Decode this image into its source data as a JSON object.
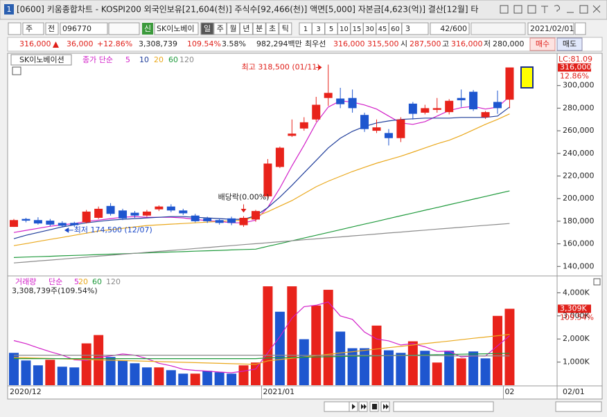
{
  "window": {
    "number": "1",
    "title": "[0600] 키움종합차트 - KOSPI200 외국인보유[21,604(천)] 주식수[92,466(천)] 액면[5,000] 자본금[4,623(억)] 결산[12월] 타"
  },
  "toolbar": {
    "period_type": "주",
    "all": "전",
    "code": "096770",
    "new": "신",
    "name": "SK이노베이",
    "periods": [
      "일",
      "주",
      "월",
      "년",
      "분",
      "초",
      "틱"
    ],
    "intervals": [
      "1",
      "3",
      "5",
      "10",
      "15",
      "30",
      "45",
      "60"
    ],
    "custom": "3",
    "count": "42/600",
    "date": "2021/02/01"
  },
  "quote": {
    "price": "316,000",
    "change": "36,000",
    "rate": "+12.86%",
    "volume": "3,308,739",
    "volume_ratio": "109.54%",
    "turnover": "3.58%",
    "amount": "982,294백만",
    "best_label": "최우선",
    "ask": "316,000",
    "bid": "315,500",
    "open_label": "시",
    "open": "287,500",
    "high_label": "고",
    "high": "316,000",
    "low_label": "저",
    "low": "280,000",
    "buy": "매수",
    "sell": "매도"
  },
  "chart_data": [
    {
      "type": "candlestick",
      "name": "SK이노베이션",
      "ma_label": "종가 단순",
      "categories": [
        "2020/12",
        null,
        null,
        null,
        null,
        null,
        null,
        null,
        null,
        null,
        null,
        null,
        null,
        null,
        null,
        null,
        null,
        null,
        null,
        null,
        null,
        "2021/01",
        null,
        null,
        null,
        null,
        null,
        null,
        null,
        null,
        null,
        null,
        null,
        null,
        null,
        null,
        null,
        null,
        null,
        null,
        null,
        "02"
      ],
      "x_end_label": "02/01",
      "open": [
        175000,
        182000,
        181000,
        180500,
        178500,
        178500,
        179000,
        183000,
        193500,
        189500,
        187500,
        185000,
        190500,
        193000,
        189500,
        185000,
        182500,
        181000,
        182500,
        176500,
        181500,
        202000,
        228000,
        255500,
        262000,
        270000,
        289000,
        288500,
        289000,
        274000,
        260000,
        258000,
        253500,
        284000,
        276000,
        278500,
        276500,
        289000,
        294500,
        272000,
        285500,
        287500
      ],
      "high": [
        182000,
        183000,
        183500,
        182000,
        180000,
        179500,
        190000,
        193000,
        196000,
        191000,
        189000,
        190000,
        194000,
        195000,
        191000,
        186500,
        184000,
        182500,
        184000,
        184500,
        190000,
        235000,
        246000,
        270000,
        272000,
        290000,
        318500,
        298000,
        296500,
        276000,
        270000,
        261500,
        272000,
        285500,
        283000,
        289000,
        288000,
        296500,
        296000,
        277500,
        295500,
        316000
      ],
      "low": [
        175000,
        179000,
        177000,
        175500,
        174500,
        175000,
        178000,
        182000,
        185000,
        181000,
        183000,
        184000,
        189000,
        188000,
        185500,
        179000,
        178500,
        177000,
        176500,
        175000,
        179500,
        200000,
        227000,
        254500,
        260000,
        268000,
        282000,
        280000,
        276000,
        259000,
        258000,
        247000,
        250000,
        270000,
        274500,
        276000,
        274500,
        281000,
        277500,
        270500,
        275000,
        280000
      ],
      "close": [
        181000,
        180500,
        178000,
        177000,
        176000,
        176500,
        188500,
        191000,
        186500,
        182500,
        185000,
        188500,
        193000,
        189500,
        187000,
        180000,
        180000,
        178500,
        178500,
        183000,
        189000,
        231000,
        245000,
        257500,
        267500,
        283000,
        293500,
        283500,
        280000,
        261500,
        263000,
        253500,
        270000,
        275000,
        280000,
        280000,
        286500,
        287000,
        279000,
        276500,
        280000,
        316000
      ],
      "up_color": "#e8231b",
      "down_color": "#1e56cf",
      "series": [
        {
          "name": "5",
          "color": "#d21fc8",
          "values": [
            170000,
            171900,
            173700,
            175500,
            176800,
            178000,
            179800,
            181000,
            182300,
            183500,
            184100,
            183500,
            183500,
            183500,
            182900,
            181700,
            180400,
            179800,
            178600,
            178600,
            181000,
            192100,
            209300,
            228900,
            247300,
            266900,
            281000,
            286500,
            285300,
            282800,
            279200,
            273000,
            266900,
            265700,
            268100,
            273000,
            277900,
            280400,
            281600,
            279200,
            281000,
            290200
          ]
        },
        {
          "name": "10",
          "color": "#1e3c9a",
          "values": [
            164500,
            167600,
            170000,
            172500,
            175000,
            176800,
            178600,
            179800,
            181000,
            181700,
            182300,
            182900,
            183500,
            184100,
            184100,
            183500,
            182900,
            182300,
            181700,
            181700,
            184800,
            192100,
            201300,
            211700,
            222800,
            233800,
            244800,
            253400,
            259500,
            263800,
            266900,
            268700,
            270000,
            270600,
            271200,
            271200,
            271200,
            271800,
            271800,
            271800,
            273000,
            281000
          ]
        },
        {
          "name": "20",
          "color": "#eaa81c",
          "values": [
            158400,
            160200,
            162100,
            163900,
            165700,
            167600,
            169400,
            171300,
            172500,
            173700,
            175000,
            176200,
            176800,
            177400,
            178000,
            178600,
            179200,
            179800,
            180400,
            181000,
            184100,
            188400,
            193300,
            198200,
            204400,
            210500,
            215400,
            219700,
            224000,
            227700,
            231300,
            234400,
            237500,
            241100,
            244800,
            248500,
            251600,
            255900,
            260800,
            265700,
            270000,
            274900
          ]
        },
        {
          "name": "60",
          "color": "#1f9a3c",
          "values": [
            147900,
            148300,
            148600,
            149000,
            149400,
            149800,
            150100,
            150500,
            150900,
            151200,
            151600,
            152000,
            152400,
            152800,
            153100,
            153500,
            153900,
            154200,
            154600,
            155000,
            155300,
            157800,
            160200,
            162700,
            165100,
            167600,
            170000,
            172500,
            175000,
            177400,
            179800,
            182300,
            184800,
            187200,
            189700,
            192100,
            194600,
            197000,
            199500,
            201900,
            204400,
            206800
          ]
        },
        {
          "name": "120",
          "color": "#8a8a8a",
          "values": [
            143100,
            143900,
            144800,
            145600,
            146500,
            147400,
            148200,
            149100,
            149900,
            150800,
            151600,
            152500,
            153300,
            154200,
            155000,
            155900,
            156700,
            157600,
            158400,
            159300,
            160100,
            161000,
            161900,
            162700,
            163600,
            164400,
            165300,
            166100,
            167000,
            167800,
            168700,
            169600,
            170400,
            171300,
            172100,
            173000,
            173800,
            174700,
            175500,
            176400,
            177200,
            178000
          ]
        }
      ],
      "ylim": [
        131000,
        320000
      ],
      "yticks": [
        {
          "value": 140000,
          "label": "140,000"
        },
        {
          "value": 160000,
          "label": "160,000"
        },
        {
          "value": 180000,
          "label": "180,000"
        },
        {
          "value": 200000,
          "label": "200,000"
        },
        {
          "value": 220000,
          "label": "220,000"
        },
        {
          "value": 240000,
          "label": "240,000"
        },
        {
          "value": 260000,
          "label": "260,000"
        },
        {
          "value": 280000,
          "label": "280,000"
        },
        {
          "value": 300000,
          "label": "300,000"
        }
      ],
      "annotations": {
        "high": "최고 318,500 (01/11)",
        "low": "최저 174,500 (12/07)",
        "ex_dividend": "배당락(0.00%)"
      },
      "lc_label": "LC:81.09",
      "price_label": "316,000",
      "rate_label": "12.86%"
    },
    {
      "type": "volume",
      "name": "거래량",
      "ma_label": "단순",
      "summary": "3,308,739주(109.54%)",
      "values": [
        1400000,
        1070000,
        860000,
        1100000,
        800000,
        770000,
        1810000,
        2170000,
        1220000,
        1070000,
        950000,
        770000,
        770000,
        650000,
        500000,
        500000,
        620000,
        560000,
        500000,
        860000,
        980000,
        4280000,
        3180000,
        4280000,
        1990000,
        3450000,
        4130000,
        2320000,
        1600000,
        1600000,
        2580000,
        1510000,
        1400000,
        1900000,
        1490000,
        980000,
        1490000,
        1160000,
        1460000,
        1160000,
        3000000,
        3308739
      ],
      "colors": [
        "#1e56cf",
        "#1e56cf",
        "#1e56cf",
        "#e8231b",
        "#1e56cf",
        "#1e56cf",
        "#e8231b",
        "#e8231b",
        "#1e56cf",
        "#1e56cf",
        "#1e56cf",
        "#1e56cf",
        "#e8231b",
        "#1e56cf",
        "#1e56cf",
        "#e8231b",
        "#1e56cf",
        "#1e56cf",
        "#1e56cf",
        "#e8231b",
        "#e8231b",
        "#e8231b",
        "#1e56cf",
        "#e8231b",
        "#1e56cf",
        "#e8231b",
        "#e8231b",
        "#1e56cf",
        "#1e56cf",
        "#1e56cf",
        "#e8231b",
        "#1e56cf",
        "#1e56cf",
        "#e8231b",
        "#1e56cf",
        "#e8231b",
        "#1e56cf",
        "#e8231b",
        "#1e56cf",
        "#1e56cf",
        "#e8231b",
        "#e8231b"
      ],
      "series": [
        {
          "name": "5",
          "color": "#d21fc8",
          "values": [
            1930000,
            1800000,
            1620000,
            1450000,
            1300000,
            1100000,
            1070000,
            1200000,
            1270000,
            1350000,
            1300000,
            1150000,
            950000,
            840000,
            690000,
            640000,
            610000,
            570000,
            540000,
            610000,
            700000,
            1400000,
            2100000,
            2900000,
            3400000,
            3460000,
            3600000,
            3000000,
            2850000,
            2300000,
            2000000,
            1920000,
            1740000,
            1800000,
            1660000,
            1460000,
            1470000,
            1220000,
            1270000,
            1260000,
            1700000,
            2140000
          ]
        },
        {
          "name": "20",
          "color": "#eaa81c",
          "values": [
            1200000,
            1185000,
            1170000,
            1155000,
            1140000,
            1125000,
            1110000,
            1095000,
            1080000,
            1065000,
            1050000,
            1035000,
            1020000,
            1005000,
            990000,
            975000,
            960000,
            945000,
            930000,
            915000,
            900000,
            1050000,
            1110000,
            1165000,
            1220000,
            1280000,
            1335000,
            1395000,
            1450000,
            1510000,
            1565000,
            1625000,
            1680000,
            1740000,
            1800000,
            1855000,
            1910000,
            1970000,
            2030000,
            2085000,
            2140000,
            2200000
          ]
        },
        {
          "name": "60",
          "color": "#1f9a3c",
          "values": [
            1150000,
            1150000,
            1150000,
            1150000,
            1150000,
            1150000,
            1150000,
            1150000,
            1150000,
            1150000,
            1150000,
            1150000,
            1150000,
            1150000,
            1150000,
            1150000,
            1150000,
            1150000,
            1150000,
            1150000,
            1150000,
            1180000,
            1190000,
            1200000,
            1210000,
            1220000,
            1230000,
            1240000,
            1250000,
            1260000,
            1270000,
            1280000,
            1290000,
            1300000,
            1310000,
            1320000,
            1330000,
            1340000,
            1350000,
            1360000,
            1370000,
            1380000
          ]
        },
        {
          "name": "120",
          "color": "#8a8a8a",
          "values": [
            1300000,
            1300000,
            1300000,
            1300000,
            1300000,
            1300000,
            1300000,
            1300000,
            1300000,
            1300000,
            1300000,
            1300000,
            1300000,
            1300000,
            1300000,
            1300000,
            1300000,
            1300000,
            1300000,
            1300000,
            1300000,
            1300000,
            1300000,
            1300000,
            1290000,
            1290000,
            1290000,
            1290000,
            1290000,
            1290000,
            1280000,
            1280000,
            1280000,
            1280000,
            1280000,
            1280000,
            1270000,
            1270000,
            1270000,
            1270000,
            1270000,
            1270000
          ]
        }
      ],
      "ylim": [
        0,
        4700000
      ],
      "yticks": [
        {
          "value": 1000000,
          "label": "1,000K"
        },
        {
          "value": 2000000,
          "label": "2,000K"
        },
        {
          "value": 3000000,
          "label": "3,000K"
        },
        {
          "value": 4000000,
          "label": "4,000K"
        }
      ],
      "value_label": "3,309K",
      "ratio_label": "109.54%"
    }
  ]
}
